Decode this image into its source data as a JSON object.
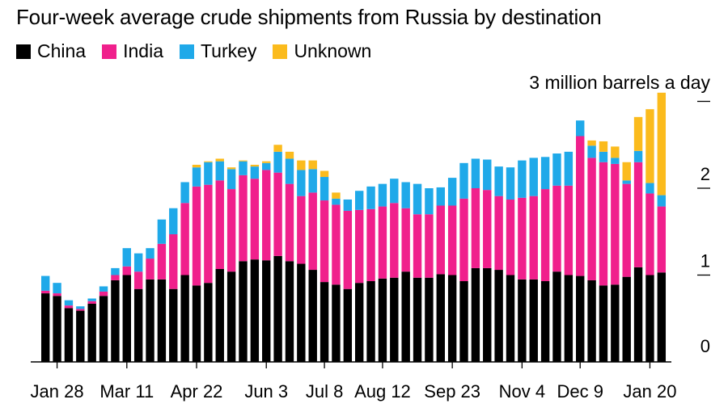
{
  "chart_data": {
    "type": "bar",
    "stacked": true,
    "title": "Four-week average crude shipments from Russia by destination",
    "units_label": "3 million barrels a day",
    "ylim": [
      0,
      3.1
    ],
    "yticks": [
      0,
      1,
      2,
      3
    ],
    "ytick_labels": [
      "0",
      "1",
      "2",
      ""
    ],
    "xtick_labels": [
      {
        "index": 1,
        "label": "Jan 28"
      },
      {
        "index": 7,
        "label": "Mar 11"
      },
      {
        "index": 13,
        "label": "Apr 22"
      },
      {
        "index": 19,
        "label": "Jun 3"
      },
      {
        "index": 24,
        "label": "Jul 8"
      },
      {
        "index": 29,
        "label": "Aug 12"
      },
      {
        "index": 35,
        "label": "Sep 23"
      },
      {
        "index": 41,
        "label": "Nov 4"
      },
      {
        "index": 46,
        "label": "Dec 9"
      },
      {
        "index": 52,
        "label": "Jan 20"
      }
    ],
    "categories": [
      "1",
      "2",
      "3",
      "4",
      "5",
      "6",
      "7",
      "8",
      "9",
      "10",
      "11",
      "12",
      "13",
      "14",
      "15",
      "16",
      "17",
      "18",
      "19",
      "20",
      "21",
      "22",
      "23",
      "24",
      "25",
      "26",
      "27",
      "28",
      "29",
      "30",
      "31",
      "32",
      "33",
      "34",
      "35",
      "36",
      "37",
      "38",
      "39",
      "40",
      "41",
      "42",
      "43",
      "44",
      "45",
      "46",
      "47",
      "48",
      "49",
      "50",
      "51",
      "52",
      "53",
      "54"
    ],
    "series": [
      {
        "name": "China",
        "color": "#000000",
        "values": [
          0.79,
          0.76,
          0.62,
          0.59,
          0.67,
          0.76,
          0.94,
          1.0,
          0.84,
          0.95,
          0.95,
          0.84,
          1.0,
          0.88,
          0.91,
          1.07,
          1.04,
          1.16,
          1.18,
          1.17,
          1.22,
          1.16,
          1.13,
          1.06,
          0.92,
          0.89,
          0.84,
          0.91,
          0.93,
          0.96,
          0.97,
          1.04,
          0.97,
          0.97,
          1.01,
          1.0,
          0.93,
          1.08,
          1.08,
          1.06,
          1.0,
          0.95,
          0.95,
          0.93,
          1.04,
          1.0,
          0.99,
          0.94,
          0.88,
          0.89,
          0.98,
          1.09,
          1.0,
          1.03
        ]
      },
      {
        "name": "India",
        "color": "#f0208c",
        "values": [
          0.03,
          0.03,
          0.03,
          0.02,
          0.03,
          0.05,
          0.06,
          0.1,
          0.2,
          0.24,
          0.41,
          0.63,
          0.83,
          1.14,
          1.13,
          1.02,
          0.95,
          0.99,
          0.93,
          1.04,
          0.96,
          0.89,
          0.78,
          0.89,
          0.94,
          0.92,
          0.9,
          0.84,
          0.83,
          0.83,
          0.86,
          0.73,
          0.73,
          0.73,
          0.79,
          0.8,
          0.95,
          0.92,
          0.9,
          0.85,
          0.87,
          0.94,
          0.96,
          1.06,
          0.99,
          1.03,
          1.61,
          1.41,
          1.42,
          1.39,
          1.07,
          1.21,
          0.94,
          0.76
        ]
      },
      {
        "name": "Turkey",
        "color": "#1fa9e9",
        "values": [
          0.17,
          0.12,
          0.06,
          0.03,
          0.03,
          0.06,
          0.08,
          0.21,
          0.21,
          0.12,
          0.28,
          0.3,
          0.24,
          0.22,
          0.26,
          0.22,
          0.23,
          0.16,
          0.14,
          0.08,
          0.24,
          0.29,
          0.3,
          0.27,
          0.27,
          0.07,
          0.13,
          0.22,
          0.26,
          0.26,
          0.28,
          0.3,
          0.35,
          0.3,
          0.21,
          0.32,
          0.41,
          0.34,
          0.35,
          0.34,
          0.37,
          0.43,
          0.44,
          0.37,
          0.37,
          0.39,
          0.18,
          0.14,
          0.12,
          0.07,
          0.04,
          0.13,
          0.12,
          0.13
        ]
      },
      {
        "name": "Unknown",
        "color": "#fbbb1d",
        "values": [
          0,
          0,
          0,
          0,
          0,
          0,
          0,
          0,
          0,
          0,
          0,
          0,
          0,
          0.03,
          0.01,
          0.03,
          0.02,
          0.01,
          0.02,
          0.02,
          0.08,
          0.08,
          0.11,
          0.1,
          0.07,
          0.07,
          0,
          0,
          0,
          0,
          0,
          0,
          0,
          0,
          0,
          0,
          0,
          0,
          0,
          0,
          0,
          0,
          0,
          0,
          0,
          0,
          0,
          0.06,
          0.12,
          0.13,
          0.21,
          0.39,
          0.85,
          1.18
        ]
      }
    ]
  }
}
